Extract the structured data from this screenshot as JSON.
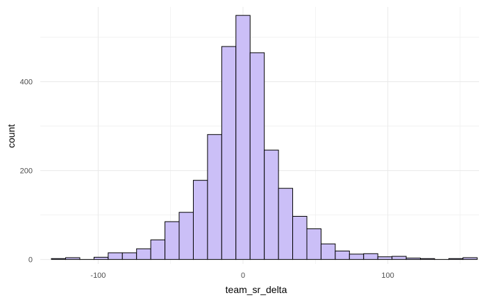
{
  "chart_data": {
    "type": "bar",
    "xlabel": "team_sr_delta",
    "ylabel": "count",
    "xlim": [
      -140,
      163
    ],
    "ylim": [
      -10,
      568
    ],
    "grid": true,
    "x_ticks": [
      -100,
      0,
      100
    ],
    "x_tick_labels": [
      "-100",
      "0",
      "100"
    ],
    "y_ticks": [
      0,
      200,
      400
    ],
    "y_tick_labels": [
      "0",
      "200",
      "400"
    ],
    "bin_width": 9.8,
    "bins_start": -132.3,
    "values": [
      2,
      4,
      0,
      5,
      15,
      15,
      24,
      44,
      85,
      106,
      178,
      281,
      479,
      549,
      465,
      246,
      160,
      97,
      69,
      35,
      19,
      12,
      13,
      6,
      7,
      3,
      2,
      0,
      2,
      4
    ],
    "colors": {
      "fill": "#cbbff7",
      "stroke": "#000000",
      "grid": "#ebebeb",
      "background": "#ffffff"
    }
  }
}
